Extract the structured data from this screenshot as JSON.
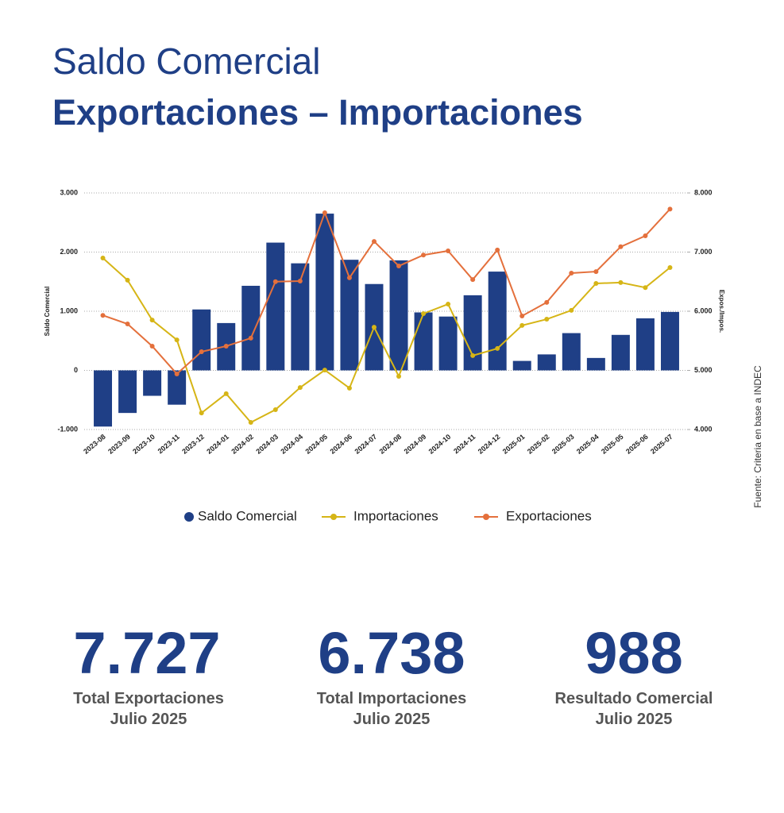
{
  "header": {
    "title": "Saldo Comercial",
    "subtitle": "Exportaciones – Importaciones"
  },
  "chart_data": {
    "type": "combo",
    "y_label": "Saldo Comercial",
    "y2_label": "Expos./Impos.",
    "categories": [
      "2023-08",
      "2023-09",
      "2023-10",
      "2023-11",
      "2023-12",
      "2024-01",
      "2024-02",
      "2024-03",
      "2024-04",
      "2024-05",
      "2024-06",
      "2024-07",
      "2024-08",
      "2024-09",
      "2024-10",
      "2024-11",
      "2024-12",
      "2025-01",
      "2025-02",
      "2025-03",
      "2025-04",
      "2025-05",
      "2025-06",
      "2025-07"
    ],
    "series": [
      {
        "name": "Saldo Comercial",
        "type": "bar",
        "color": "#1f3f86",
        "values": [
          -950,
          -720,
          -430,
          -580,
          1030,
          800,
          1430,
          2160,
          1810,
          2650,
          1870,
          1460,
          1860,
          980,
          910,
          1270,
          1670,
          160,
          270,
          630,
          210,
          600,
          880,
          988
        ]
      },
      {
        "name": "Importaciones",
        "type": "line",
        "axis": "y2",
        "color": "#d6b516",
        "values": [
          6900,
          6525,
          5850,
          5515,
          4280,
          4605,
          4120,
          4335,
          4710,
          5005,
          4700,
          5730,
          4900,
          5960,
          6120,
          5250,
          5370,
          5760,
          5865,
          6015,
          6470,
          6485,
          6400,
          6738
        ]
      },
      {
        "name": "Exportaciones",
        "type": "line",
        "axis": "y2",
        "color": "#e4703c",
        "values": [
          5930,
          5785,
          5410,
          4940,
          5315,
          5410,
          5545,
          6500,
          6510,
          7665,
          6565,
          7180,
          6765,
          6950,
          7020,
          6535,
          7035,
          5920,
          6150,
          6645,
          6670,
          7090,
          7275,
          7727
        ]
      }
    ],
    "ylim": [
      -1000,
      3000
    ],
    "yticks": [
      {
        "value": -1000,
        "label": "-1.000"
      },
      0,
      {
        "value": 1000,
        "label": "1.000"
      },
      {
        "value": 2000,
        "label": "2.000"
      },
      {
        "value": 3000,
        "label": "3.000"
      }
    ],
    "y2lim": [
      4000,
      8000
    ],
    "y2ticks": [
      {
        "value": 4000,
        "label": "4.000"
      },
      {
        "value": 5000,
        "label": "5.000"
      },
      {
        "value": 6000,
        "label": "6.000"
      },
      {
        "value": 7000,
        "label": "7.000"
      },
      {
        "value": 8000,
        "label": "8.000"
      }
    ],
    "grid": true,
    "legend": "bottom"
  },
  "stats": [
    {
      "value": "7.727",
      "label": "Total Exportaciones",
      "period": "Julio 2025"
    },
    {
      "value": "6.738",
      "label": "Total Importaciones",
      "period": "Julio 2025"
    },
    {
      "value": "988",
      "label": "Resultado Comercial",
      "period": "Julio 2025"
    }
  ],
  "source": "Fuente: Criteria en base a INDEC"
}
